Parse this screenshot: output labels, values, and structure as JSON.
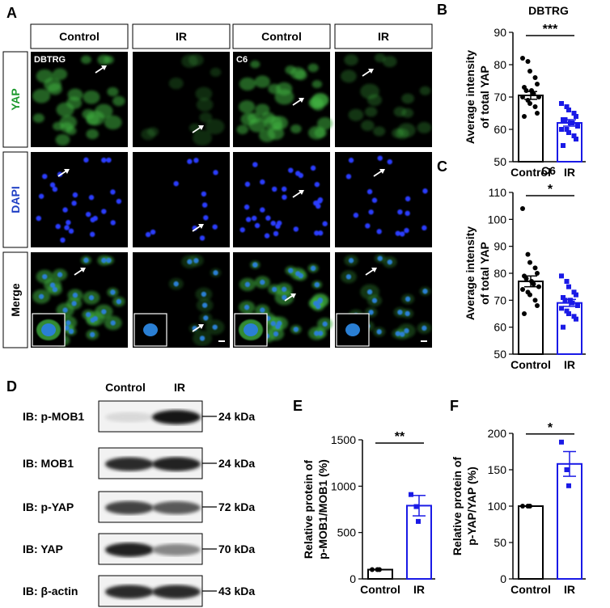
{
  "panel_letters": {
    "a": "A",
    "b": "B",
    "c": "C",
    "d": "D",
    "e": "E",
    "f": "F"
  },
  "panel_a": {
    "columns": [
      "Control",
      "IR",
      "Control",
      "IR"
    ],
    "rows": [
      "YAP",
      "DAPI",
      "Merge"
    ],
    "cell_labels": {
      "dbtrg": "DBTRG",
      "c6": "C6"
    },
    "colors": {
      "yap": "#1f9a2f",
      "dapi": "#1f3fc4",
      "cells_green": "#3fae3f",
      "nuclei_blue": "#2c3cff",
      "background": "#000000"
    }
  },
  "panel_d": {
    "header": [
      "Control",
      "IR"
    ],
    "blots": [
      {
        "label": "IB: p-MOB1",
        "kda": "24 kDa",
        "control": 0.08,
        "ir": 0.95
      },
      {
        "label": "IB: MOB1",
        "kda": "24 kDa",
        "control": 0.85,
        "ir": 0.9
      },
      {
        "label": "IB: p-YAP",
        "kda": "72 kDa",
        "control": 0.75,
        "ir": 0.65
      },
      {
        "label": "IB: YAP",
        "kda": "70 kDa",
        "control": 0.9,
        "ir": 0.45
      },
      {
        "label": "IB: β-actin",
        "kda": "43 kDa",
        "control": 0.85,
        "ir": 0.85
      }
    ]
  },
  "chart_data": [
    {
      "panel": "B",
      "type": "bar",
      "title": "DBTRG",
      "ylabel": [
        "Average intensity",
        "of total YAP"
      ],
      "ylim": [
        50,
        90
      ],
      "yticks": [
        50,
        60,
        70,
        80,
        90
      ],
      "categories": [
        "Control",
        "IR"
      ],
      "values": [
        70.5,
        62
      ],
      "errors": [
        1.2,
        1.0
      ],
      "significance": "***",
      "points": [
        [
          82,
          81,
          78,
          76,
          74,
          73,
          72,
          72,
          71,
          70,
          70,
          69,
          68,
          67,
          65,
          64
        ],
        [
          68,
          67,
          66,
          65,
          64,
          63,
          63,
          62,
          62,
          61,
          60,
          60,
          59,
          58,
          57,
          55
        ]
      ],
      "colors": [
        "#000000",
        "#1a1ae6"
      ]
    },
    {
      "panel": "C",
      "type": "bar",
      "title": "C6",
      "ylabel": [
        "Average intensity",
        "of total YAP"
      ],
      "ylim": [
        50,
        110
      ],
      "yticks": [
        50,
        60,
        70,
        80,
        90,
        100,
        110
      ],
      "categories": [
        "Control",
        "IR"
      ],
      "values": [
        77,
        69
      ],
      "errors": [
        2.0,
        1.3
      ],
      "significance": "*",
      "points": [
        [
          104,
          87,
          84,
          82,
          80,
          79,
          78,
          77,
          76,
          75,
          74,
          73,
          72,
          70,
          68,
          65
        ],
        [
          79,
          77,
          75,
          73,
          72,
          71,
          70,
          70,
          69,
          68,
          67,
          66,
          65,
          64,
          63,
          60
        ]
      ],
      "colors": [
        "#000000",
        "#1a1ae6"
      ]
    },
    {
      "panel": "E",
      "type": "bar",
      "ylabel": [
        "Relative protein of",
        "p-MOB1/MOB1 (%)"
      ],
      "ylim": [
        0,
        1500
      ],
      "yticks": [
        0,
        500,
        1000,
        1500
      ],
      "categories": [
        "Control",
        "IR"
      ],
      "values": [
        100,
        790
      ],
      "errors": [
        0,
        110
      ],
      "significance": "**",
      "points": [
        [
          100,
          100,
          100
        ],
        [
          910,
          780,
          620
        ]
      ],
      "colors": [
        "#000000",
        "#1a1ae6"
      ]
    },
    {
      "panel": "F",
      "type": "bar",
      "ylabel": [
        "Relative protein of",
        "p-YAP/YAP (%)"
      ],
      "ylim": [
        0,
        200
      ],
      "yticks": [
        0,
        50,
        100,
        150,
        200
      ],
      "categories": [
        "Control",
        "IR"
      ],
      "values": [
        100,
        158
      ],
      "errors": [
        0,
        17
      ],
      "significance": "*",
      "points": [
        [
          100,
          100,
          100
        ],
        [
          188,
          150,
          128
        ]
      ],
      "colors": [
        "#000000",
        "#1a1ae6"
      ]
    }
  ]
}
